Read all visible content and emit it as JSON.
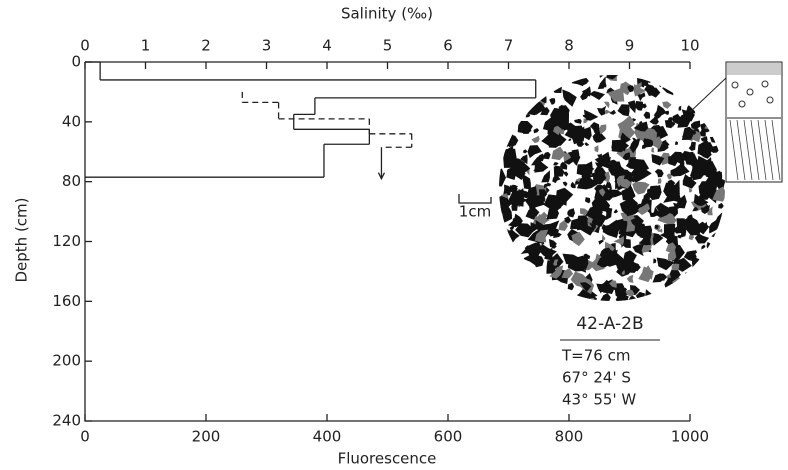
{
  "chart_data": {
    "type": "step-profile",
    "top_axis_label": "Salinity (‰)",
    "x_label": "Fluorescence",
    "y_label": "Depth (cm)",
    "xlim": [
      0,
      1000
    ],
    "xticks": [
      0,
      200,
      400,
      600,
      800,
      1000
    ],
    "x2lim": [
      0,
      10
    ],
    "x2ticks": [
      0,
      1,
      2,
      3,
      4,
      5,
      6,
      7,
      8,
      9,
      10
    ],
    "ylim": [
      0,
      240
    ],
    "yticks": [
      0,
      40,
      80,
      120,
      160,
      200,
      240
    ],
    "y_inverted": true,
    "series": [
      {
        "axis": "x",
        "style": "solid",
        "depths": [
          0,
          12,
          24,
          35,
          45,
          55,
          77
        ],
        "values": [
          25,
          745,
          380,
          345,
          470,
          395
        ]
      },
      {
        "axis": "x2",
        "style": "dashed",
        "depths": [
          20,
          27,
          38,
          48,
          57
        ],
        "values": [
          2.6,
          3.2,
          4.7,
          5.4
        ],
        "arrow_value": 4.9,
        "arrow_to_depth": 78
      }
    ],
    "scale_bar_label": "1cm",
    "sample": {
      "label": "42-A-2B",
      "lines": [
        "T=76 cm",
        "67° 24' S",
        "43° 55' W"
      ]
    }
  }
}
